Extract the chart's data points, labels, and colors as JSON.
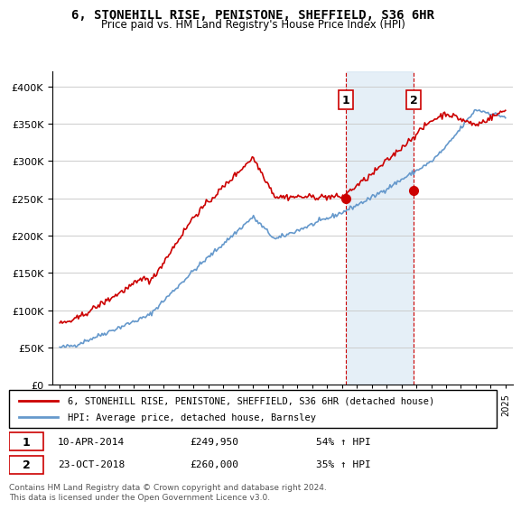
{
  "title": "6, STONEHILL RISE, PENISTONE, SHEFFIELD, S36 6HR",
  "subtitle": "Price paid vs. HM Land Registry's House Price Index (HPI)",
  "legend_line1": "6, STONEHILL RISE, PENISTONE, SHEFFIELD, S36 6HR (detached house)",
  "legend_line2": "HPI: Average price, detached house, Barnsley",
  "transaction1_date": "10-APR-2014",
  "transaction1_price": 249950,
  "transaction1_hpi": "54% ↑ HPI",
  "transaction2_date": "23-OCT-2018",
  "transaction2_price": 260000,
  "transaction2_hpi": "35% ↑ HPI",
  "footnote": "Contains HM Land Registry data © Crown copyright and database right 2024.\nThis data is licensed under the Open Government Licence v3.0.",
  "hpi_color": "#6699cc",
  "sold_color": "#cc0000",
  "marker_color": "#cc0000",
  "shade_color": "#cce0f0",
  "vline_color": "#cc0000",
  "ylim": [
    0,
    420000
  ],
  "yticks": [
    0,
    50000,
    100000,
    150000,
    200000,
    250000,
    300000,
    350000,
    400000
  ],
  "start_year": 1995,
  "end_year": 2025,
  "transaction1_x": 2014.27,
  "transaction2_x": 2018.81
}
